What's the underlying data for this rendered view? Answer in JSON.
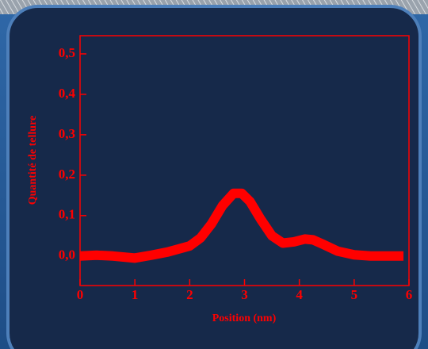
{
  "chart_data": {
    "type": "line",
    "x_label": "Position (nm)",
    "y_label": "Quantité de tellure",
    "x": [
      0,
      0.3,
      0.6,
      1.0,
      1.3,
      1.6,
      2.0,
      2.2,
      2.4,
      2.6,
      2.8,
      2.95,
      3.1,
      3.3,
      3.5,
      3.7,
      3.9,
      4.1,
      4.25,
      4.45,
      4.7,
      5.0,
      5.3,
      5.6,
      5.9
    ],
    "values": [
      0.0,
      0.002,
      0.0,
      -0.005,
      0.002,
      0.01,
      0.025,
      0.045,
      0.08,
      0.125,
      0.155,
      0.155,
      0.135,
      0.09,
      0.05,
      0.032,
      0.035,
      0.042,
      0.04,
      0.028,
      0.012,
      0.003,
      0.0,
      0.0,
      0.0
    ],
    "color": "#ff0000",
    "xlim": [
      0,
      6
    ],
    "xticks": [
      0,
      1,
      2,
      3,
      4,
      5,
      6
    ],
    "ylim": [
      -0.073,
      0.545
    ],
    "yticks": [
      {
        "value": 0.0,
        "label": "0,0"
      },
      {
        "value": 0.1,
        "label": "0,1"
      },
      {
        "value": 0.2,
        "label": "0,2"
      },
      {
        "value": 0.3,
        "label": "0,3"
      },
      {
        "value": 0.4,
        "label": "0,4"
      },
      {
        "value": 0.5,
        "label": "0,5"
      }
    ]
  }
}
